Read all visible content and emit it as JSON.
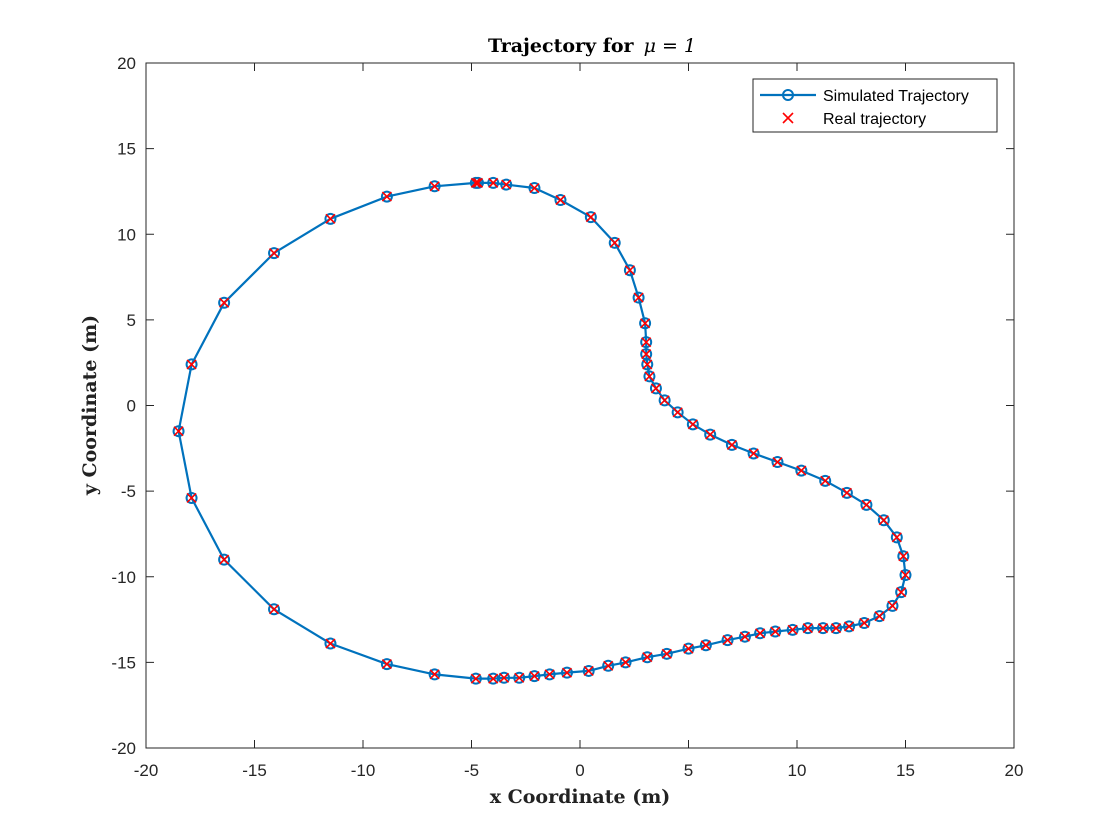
{
  "chart_data": {
    "type": "line",
    "title": "Trajectory for",
    "title_math": "μ = 1",
    "xlabel": "x Coordinate (m)",
    "ylabel": "y Coordinate (m)",
    "xlim": [
      -20,
      20
    ],
    "ylim": [
      -20,
      20
    ],
    "x_ticks": [
      -20,
      -15,
      -10,
      -5,
      0,
      5,
      10,
      15,
      20
    ],
    "y_ticks": [
      -20,
      -15,
      -10,
      -5,
      0,
      5,
      10,
      15,
      20
    ],
    "x_tick_labels": [
      "-20",
      "-15",
      "-10",
      "-5",
      "0",
      "5",
      "10",
      "15",
      "20"
    ],
    "y_tick_labels": [
      "-20",
      "-15",
      "-10",
      "-5",
      "0",
      "5",
      "10",
      "15",
      "20"
    ],
    "grid": false,
    "legend_position": "top-right",
    "legend": [
      "Simulated Trajectory",
      "Real trajectory"
    ],
    "series": [
      {
        "name": "Simulated Trajectory",
        "style": "line-with-circle-markers",
        "color": "#0072BD",
        "points": [
          [
            -4.7,
            13.0
          ],
          [
            -4.0,
            13.0
          ],
          [
            -3.4,
            12.9
          ],
          [
            -2.1,
            12.7
          ],
          [
            -0.9,
            12.0
          ],
          [
            0.5,
            11.0
          ],
          [
            1.6,
            9.5
          ],
          [
            2.3,
            7.9
          ],
          [
            2.7,
            6.3
          ],
          [
            3.0,
            4.8
          ],
          [
            3.05,
            3.7
          ],
          [
            3.05,
            3.0
          ],
          [
            3.1,
            2.4
          ],
          [
            3.2,
            1.7
          ],
          [
            3.5,
            1.0
          ],
          [
            3.9,
            0.3
          ],
          [
            4.5,
            -0.4
          ],
          [
            5.2,
            -1.1
          ],
          [
            6.0,
            -1.7
          ],
          [
            7.0,
            -2.3
          ],
          [
            8.0,
            -2.8
          ],
          [
            9.1,
            -3.3
          ],
          [
            10.2,
            -3.8
          ],
          [
            11.3,
            -4.4
          ],
          [
            12.3,
            -5.1
          ],
          [
            13.2,
            -5.8
          ],
          [
            14.0,
            -6.7
          ],
          [
            14.6,
            -7.7
          ],
          [
            14.9,
            -8.8
          ],
          [
            15.0,
            -9.9
          ],
          [
            14.8,
            -10.9
          ],
          [
            14.4,
            -11.7
          ],
          [
            13.8,
            -12.3
          ],
          [
            13.1,
            -12.7
          ],
          [
            12.4,
            -12.9
          ],
          [
            11.8,
            -13.0
          ],
          [
            11.2,
            -13.0
          ],
          [
            10.5,
            -13.0
          ],
          [
            9.8,
            -13.1
          ],
          [
            9.0,
            -13.2
          ],
          [
            8.3,
            -13.3
          ],
          [
            7.6,
            -13.5
          ],
          [
            6.8,
            -13.7
          ],
          [
            5.8,
            -14.0
          ],
          [
            5.0,
            -14.2
          ],
          [
            4.0,
            -14.5
          ],
          [
            3.1,
            -14.7
          ],
          [
            2.1,
            -15.0
          ],
          [
            1.3,
            -15.2
          ],
          [
            0.4,
            -15.5
          ],
          [
            -0.6,
            -15.6
          ],
          [
            -1.4,
            -15.7
          ],
          [
            -2.1,
            -15.8
          ],
          [
            -2.8,
            -15.9
          ],
          [
            -3.5,
            -15.9
          ],
          [
            -4.0,
            -15.95
          ],
          [
            -4.8,
            -15.95
          ],
          [
            -6.7,
            -15.7
          ],
          [
            -8.9,
            -15.1
          ],
          [
            -11.5,
            -13.9
          ],
          [
            -14.1,
            -11.9
          ],
          [
            -16.4,
            -9.0
          ],
          [
            -17.9,
            -5.4
          ],
          [
            -18.5,
            -1.5
          ],
          [
            -17.9,
            2.4
          ],
          [
            -16.4,
            6.0
          ],
          [
            -14.1,
            8.9
          ],
          [
            -11.5,
            10.9
          ],
          [
            -8.9,
            12.2
          ],
          [
            -6.7,
            12.8
          ],
          [
            -4.8,
            13.0
          ]
        ]
      },
      {
        "name": "Real trajectory",
        "style": "x-markers",
        "color": "#FF0000",
        "points": [
          [
            -4.7,
            13.0
          ],
          [
            -4.0,
            13.0
          ],
          [
            -3.4,
            12.9
          ],
          [
            -2.1,
            12.7
          ],
          [
            -0.9,
            12.0
          ],
          [
            0.5,
            11.0
          ],
          [
            1.6,
            9.5
          ],
          [
            2.3,
            7.9
          ],
          [
            2.7,
            6.3
          ],
          [
            3.0,
            4.8
          ],
          [
            3.05,
            3.7
          ],
          [
            3.05,
            3.0
          ],
          [
            3.1,
            2.4
          ],
          [
            3.2,
            1.7
          ],
          [
            3.5,
            1.0
          ],
          [
            3.9,
            0.3
          ],
          [
            4.5,
            -0.4
          ],
          [
            5.2,
            -1.1
          ],
          [
            6.0,
            -1.7
          ],
          [
            7.0,
            -2.3
          ],
          [
            8.0,
            -2.8
          ],
          [
            9.1,
            -3.3
          ],
          [
            10.2,
            -3.8
          ],
          [
            11.3,
            -4.4
          ],
          [
            12.3,
            -5.1
          ],
          [
            13.2,
            -5.8
          ],
          [
            14.0,
            -6.7
          ],
          [
            14.6,
            -7.7
          ],
          [
            14.9,
            -8.8
          ],
          [
            15.0,
            -9.9
          ],
          [
            14.8,
            -10.9
          ],
          [
            14.4,
            -11.7
          ],
          [
            13.8,
            -12.3
          ],
          [
            13.1,
            -12.7
          ],
          [
            12.4,
            -12.9
          ],
          [
            11.8,
            -13.0
          ],
          [
            11.2,
            -13.0
          ],
          [
            10.5,
            -13.0
          ],
          [
            9.8,
            -13.1
          ],
          [
            9.0,
            -13.2
          ],
          [
            8.3,
            -13.3
          ],
          [
            7.6,
            -13.5
          ],
          [
            6.8,
            -13.7
          ],
          [
            5.8,
            -14.0
          ],
          [
            5.0,
            -14.2
          ],
          [
            4.0,
            -14.5
          ],
          [
            3.1,
            -14.7
          ],
          [
            2.1,
            -15.0
          ],
          [
            1.3,
            -15.2
          ],
          [
            0.4,
            -15.5
          ],
          [
            -0.6,
            -15.6
          ],
          [
            -1.4,
            -15.7
          ],
          [
            -2.1,
            -15.8
          ],
          [
            -2.8,
            -15.9
          ],
          [
            -3.5,
            -15.9
          ],
          [
            -4.0,
            -15.95
          ],
          [
            -4.8,
            -15.95
          ],
          [
            -6.7,
            -15.7
          ],
          [
            -8.9,
            -15.1
          ],
          [
            -11.5,
            -13.9
          ],
          [
            -14.1,
            -11.9
          ],
          [
            -16.4,
            -9.0
          ],
          [
            -17.9,
            -5.4
          ],
          [
            -18.5,
            -1.5
          ],
          [
            -17.9,
            2.4
          ],
          [
            -16.4,
            6.0
          ],
          [
            -14.1,
            8.9
          ],
          [
            -11.5,
            10.9
          ],
          [
            -8.9,
            12.2
          ],
          [
            -6.7,
            12.8
          ],
          [
            -4.8,
            13.0
          ]
        ]
      }
    ]
  }
}
